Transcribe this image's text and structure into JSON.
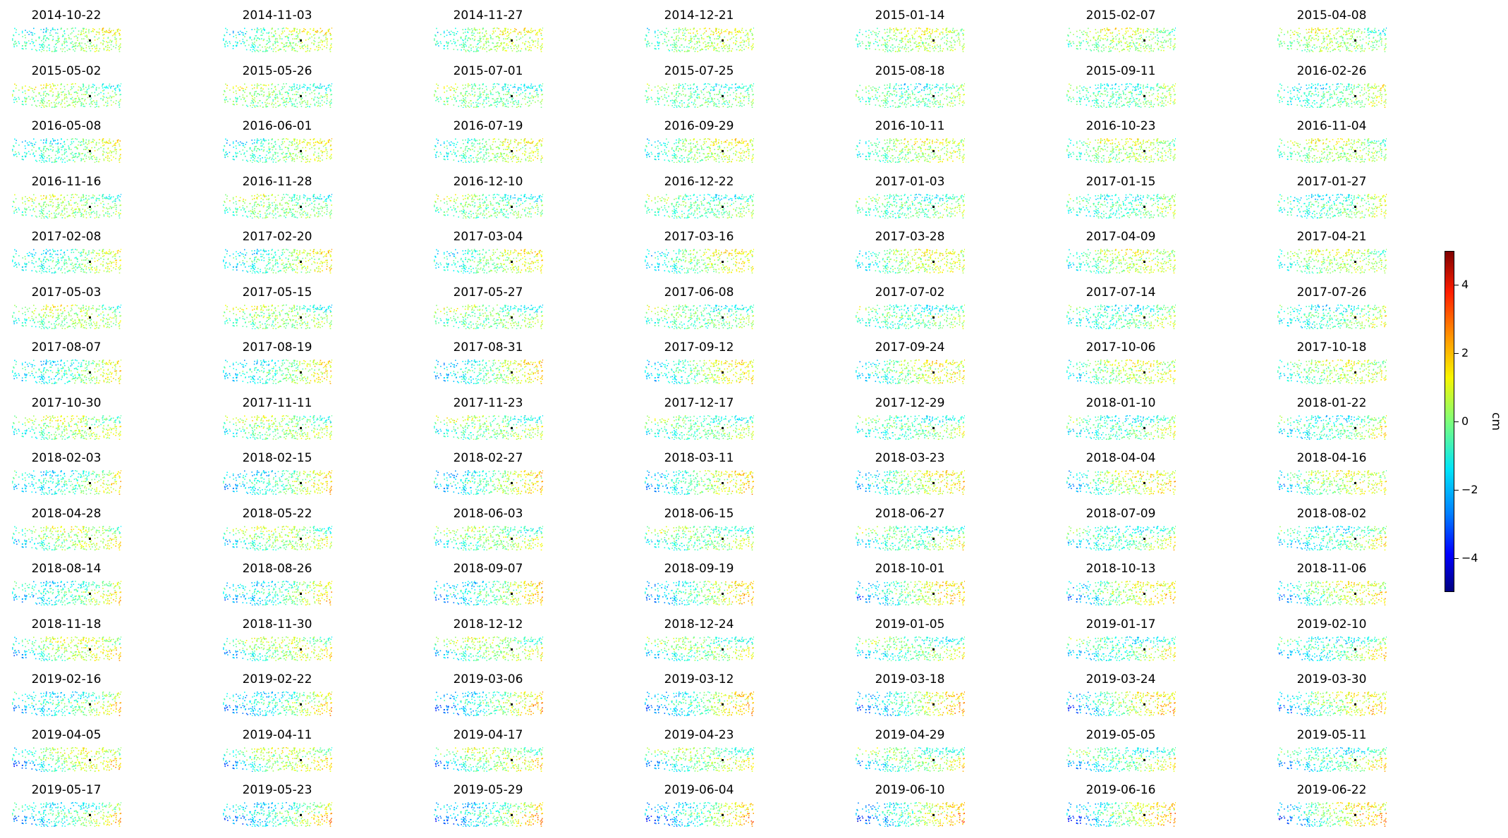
{
  "chart_data": {
    "type": "scatter",
    "description_kind": "small-multiples displacement maps",
    "layout": {
      "rows": 15,
      "cols": 7
    },
    "panels": [
      "2014-10-22",
      "2014-11-03",
      "2014-11-27",
      "2014-12-21",
      "2015-01-14",
      "2015-02-07",
      "2015-04-08",
      "2015-05-02",
      "2015-05-26",
      "2015-07-01",
      "2015-07-25",
      "2015-08-18",
      "2015-09-11",
      "2016-02-26",
      "2016-05-08",
      "2016-06-01",
      "2016-07-19",
      "2016-09-29",
      "2016-10-11",
      "2016-10-23",
      "2016-11-04",
      "2016-11-16",
      "2016-11-28",
      "2016-12-10",
      "2016-12-22",
      "2017-01-03",
      "2017-01-15",
      "2017-01-27",
      "2017-02-08",
      "2017-02-20",
      "2017-03-04",
      "2017-03-16",
      "2017-03-28",
      "2017-04-09",
      "2017-04-21",
      "2017-05-03",
      "2017-05-15",
      "2017-05-27",
      "2017-06-08",
      "2017-07-02",
      "2017-07-14",
      "2017-07-26",
      "2017-08-07",
      "2017-08-19",
      "2017-08-31",
      "2017-09-12",
      "2017-09-24",
      "2017-10-06",
      "2017-10-18",
      "2017-10-30",
      "2017-11-11",
      "2017-11-23",
      "2017-12-17",
      "2017-12-29",
      "2018-01-10",
      "2018-01-22",
      "2018-02-03",
      "2018-02-15",
      "2018-02-27",
      "2018-03-11",
      "2018-03-23",
      "2018-04-04",
      "2018-04-16",
      "2018-04-28",
      "2018-05-22",
      "2018-06-03",
      "2018-06-15",
      "2018-06-27",
      "2018-07-09",
      "2018-08-02",
      "2018-08-14",
      "2018-08-26",
      "2018-09-07",
      "2018-09-19",
      "2018-10-01",
      "2018-10-13",
      "2018-11-06",
      "2018-11-18",
      "2018-11-30",
      "2018-12-12",
      "2018-12-24",
      "2019-01-05",
      "2019-01-17",
      "2019-02-10",
      "2019-02-16",
      "2019-02-22",
      "2019-03-06",
      "2019-03-12",
      "2019-03-18",
      "2019-03-24",
      "2019-03-30",
      "2019-04-05",
      "2019-04-11",
      "2019-04-17",
      "2019-04-23",
      "2019-04-29",
      "2019-05-05",
      "2019-05-11",
      "2019-05-17",
      "2019-05-23",
      "2019-05-29",
      "2019-06-04",
      "2019-06-10",
      "2019-06-16",
      "2019-06-22"
    ],
    "colorbar": {
      "label": "cm",
      "range": [
        -5,
        5
      ],
      "ticks": [
        4,
        2,
        0,
        -2,
        -4
      ],
      "tick_labels": [
        "4",
        "2",
        "0",
        "−2",
        "−4"
      ],
      "colormap": "jet",
      "colors": [
        "#00007f",
        "#0000ff",
        "#0080ff",
        "#00e4f8",
        "#7dff7a",
        "#f8f500",
        "#ff9400",
        "#ff1e00",
        "#7f0000"
      ]
    },
    "reference_point_color": "#000000",
    "axes_visible": false
  }
}
